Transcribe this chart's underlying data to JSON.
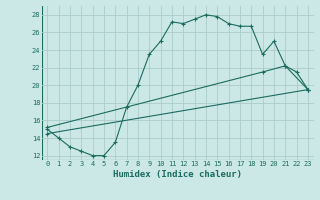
{
  "xlabel": "Humidex (Indice chaleur)",
  "bg_color": "#cce8e6",
  "line_color": "#1a6b60",
  "grid_color": "#aaccca",
  "xlim": [
    -0.5,
    23.5
  ],
  "ylim": [
    11.5,
    29
  ],
  "xticks": [
    0,
    1,
    2,
    3,
    4,
    5,
    6,
    7,
    8,
    9,
    10,
    11,
    12,
    13,
    14,
    15,
    16,
    17,
    18,
    19,
    20,
    21,
    22,
    23
  ],
  "yticks": [
    12,
    14,
    16,
    18,
    20,
    22,
    24,
    26,
    28
  ],
  "line1_x": [
    0,
    1,
    2,
    3,
    4,
    5,
    6,
    7,
    8,
    9,
    10,
    11,
    12,
    13,
    14,
    15,
    16,
    17,
    18,
    19,
    20,
    21,
    22,
    23
  ],
  "line1_y": [
    15,
    14,
    13,
    12.5,
    12,
    12,
    13.5,
    17.5,
    20,
    23.5,
    25,
    27.2,
    27,
    27.5,
    28,
    27.8,
    27,
    26.7,
    26.7,
    23.5,
    25,
    22.2,
    21.5,
    19.5
  ],
  "line2_x": [
    0,
    23
  ],
  "line2_y": [
    14.5,
    19.5
  ],
  "line3_x": [
    0,
    19,
    21,
    23
  ],
  "line3_y": [
    15.2,
    21.5,
    22.2,
    19.5
  ]
}
